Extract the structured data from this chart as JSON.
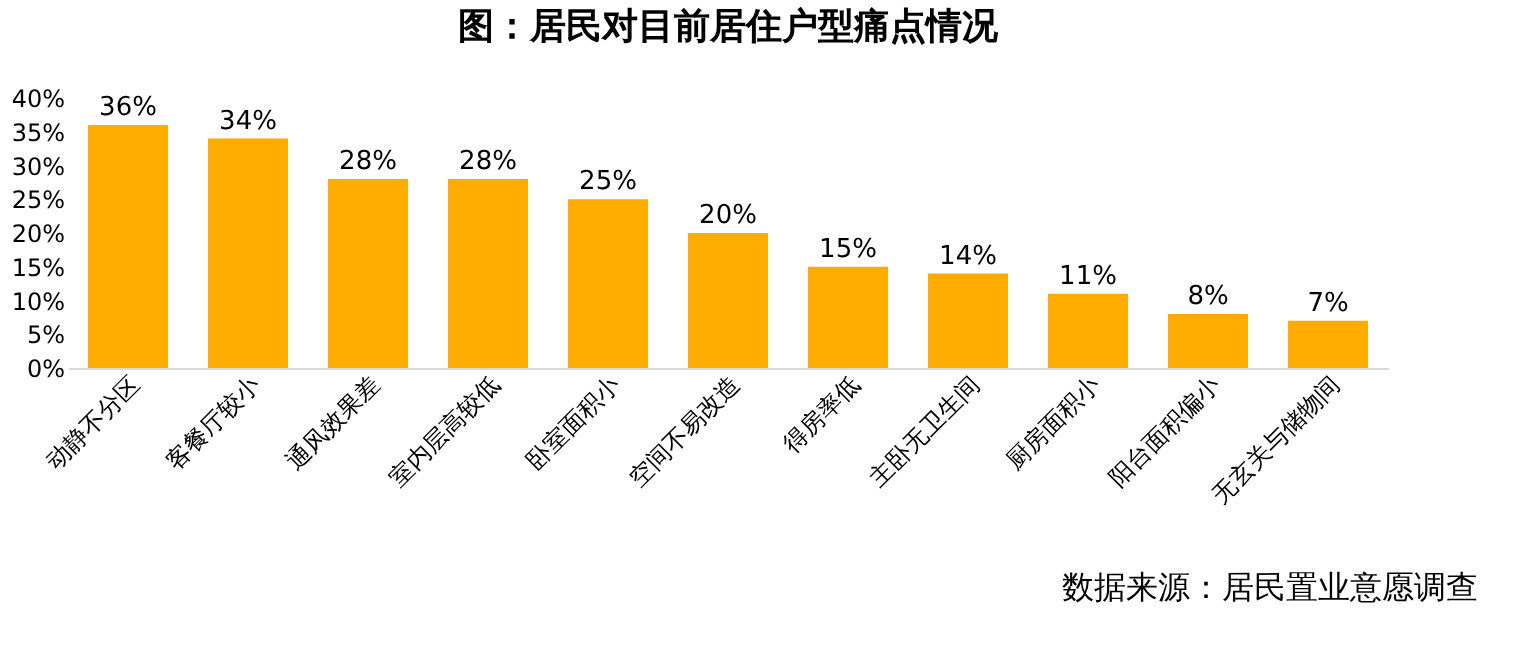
{
  "chart_data": {
    "type": "bar",
    "title": "图：居民对目前居住户型痛点情况",
    "categories": [
      "动静不分区",
      "客餐厅较小",
      "通风效果差",
      "室内层高较低",
      "卧室面积小",
      "空间不易改造",
      "得房率低",
      "主卧无卫生间",
      "厨房面积小",
      "阳台面积偏小",
      "无玄关与储物间"
    ],
    "values": [
      36,
      34,
      28,
      28,
      25,
      20,
      15,
      14,
      11,
      8,
      7
    ],
    "value_labels": [
      "36%",
      "34%",
      "28%",
      "28%",
      "25%",
      "20%",
      "15%",
      "14%",
      "11%",
      "8%",
      "7%"
    ],
    "color": "#ffab00",
    "ylim": [
      0,
      40
    ],
    "yticks": [
      {
        "value": 0,
        "label": "0%"
      },
      {
        "value": 5,
        "label": "5%"
      },
      {
        "value": 10,
        "label": "10%"
      },
      {
        "value": 15,
        "label": "15%"
      },
      {
        "value": 20,
        "label": "20%"
      },
      {
        "value": 25,
        "label": "25%"
      },
      {
        "value": 30,
        "label": "30%"
      },
      {
        "value": 35,
        "label": "35%"
      },
      {
        "value": 40,
        "label": "40%"
      }
    ],
    "grid": false,
    "annotations": [
      "数据来源：居民置业意愿调查"
    ]
  }
}
